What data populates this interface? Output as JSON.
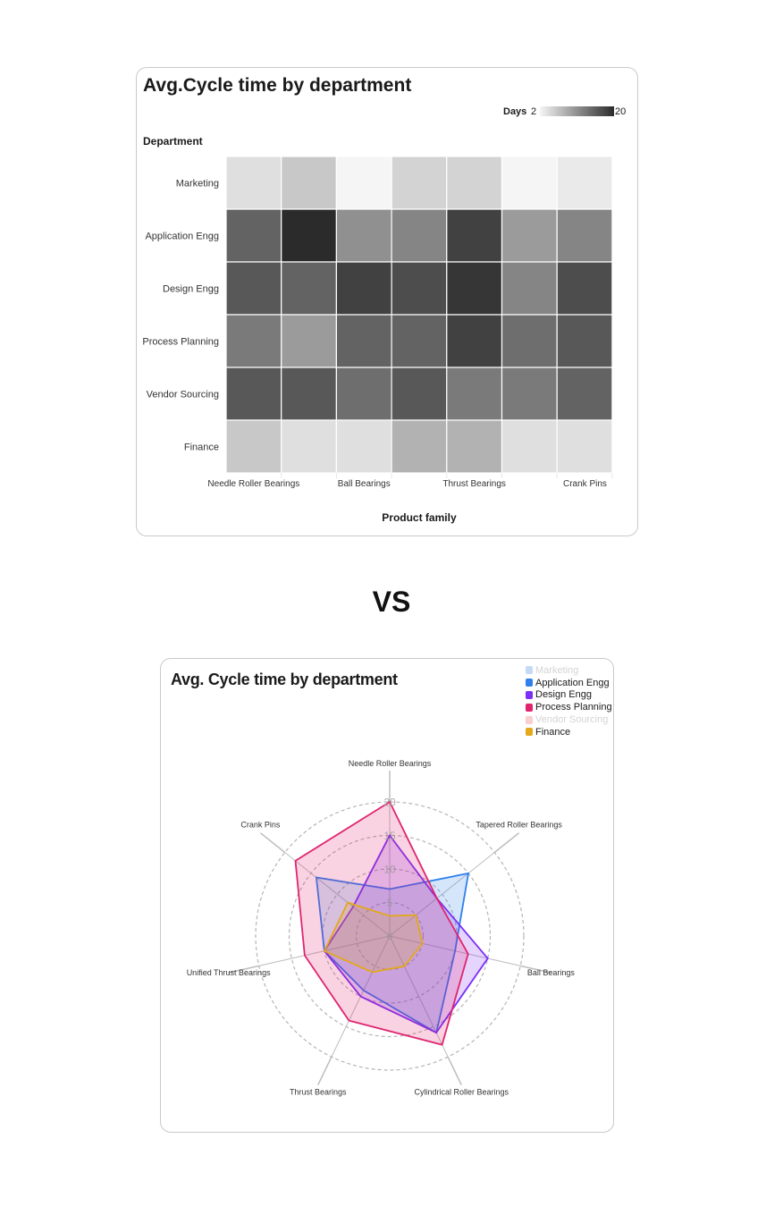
{
  "heatmap_title": "Avg.Cycle time by department",
  "radar_title": "Avg. Cycle time by department",
  "separator_text": "VS",
  "chart_data": [
    {
      "type": "heatmap",
      "title": "Avg.Cycle time by department",
      "xlabel": "Product family",
      "ylabel": "Department",
      "legend_label": "Days",
      "color_range": [
        2,
        20
      ],
      "color_scale": [
        "#f5f5f5",
        "#2b2b2b"
      ],
      "rows": [
        "Marketing",
        "Application Engg",
        "Design Engg",
        "Process Planning",
        "Vendor Sourcing",
        "Finance"
      ],
      "columns": [
        "Needle Roller Bearings",
        "",
        "Ball Bearings",
        "",
        "Thrust Bearings",
        "",
        "Crank Pins"
      ],
      "values": [
        [
          4,
          6,
          2,
          5,
          5,
          2,
          3
        ],
        [
          15,
          20,
          11,
          12,
          18,
          10,
          12
        ],
        [
          16,
          15,
          18,
          17,
          19,
          12,
          17
        ],
        [
          13,
          10,
          15,
          15,
          18,
          14,
          16
        ],
        [
          16,
          16,
          14,
          16,
          13,
          13,
          15
        ],
        [
          6,
          4,
          4,
          8,
          8,
          4,
          4
        ]
      ]
    },
    {
      "type": "radar",
      "title": "Avg. Cycle time by department",
      "axes": [
        "Needle Roller Bearings",
        "Tapered Roller Bearings",
        "Ball Bearings",
        "Cylindrical Roller Bearings",
        "Thrust Bearings",
        "Unified Thrust Bearings",
        "Crank Pins"
      ],
      "range": [
        0,
        20
      ],
      "ticks": [
        0,
        5,
        10,
        15,
        20
      ],
      "legend_position": "top-right",
      "series": [
        {
          "name": "Marketing",
          "color": "#c6daf7",
          "visible": false,
          "values": [
            0,
            0,
            0,
            0,
            0,
            0,
            0
          ]
        },
        {
          "name": "Application Engg",
          "color": "#2f80ed",
          "visible": true,
          "values": [
            7,
            15,
            10,
            16,
            9,
            10,
            14
          ]
        },
        {
          "name": "Design Engg",
          "color": "#7b2ff7",
          "visible": true,
          "values": [
            15,
            9,
            15,
            16,
            10,
            10,
            7
          ]
        },
        {
          "name": "Process Planning",
          "color": "#e0246f",
          "visible": true,
          "values": [
            20,
            9,
            12,
            18,
            14,
            13,
            18
          ]
        },
        {
          "name": "Vendor Sourcing",
          "color": "#f9cfcf",
          "visible": false,
          "values": [
            0,
            0,
            0,
            0,
            0,
            0,
            0
          ]
        },
        {
          "name": "Finance",
          "color": "#e3a81b",
          "visible": true,
          "values": [
            3,
            5,
            5,
            5,
            6,
            10,
            8
          ]
        }
      ]
    }
  ]
}
